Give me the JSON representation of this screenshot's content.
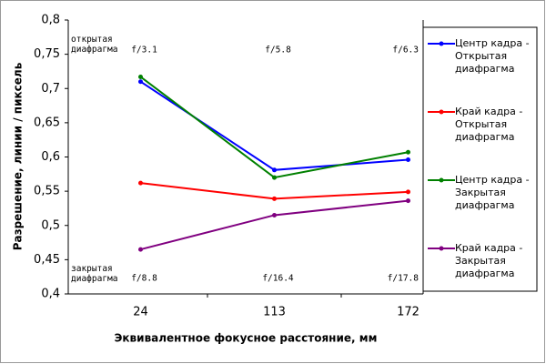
{
  "chart_data": {
    "type": "line",
    "y_label": "Разрешение, линии / пиксель",
    "x_label": "Эквивалентное фокусное расстояние, мм",
    "categories": [
      "24",
      "113",
      "172"
    ],
    "ylim": [
      0.4,
      0.8
    ],
    "yticks": [
      {
        "value": 0.4,
        "label": "0,4"
      },
      {
        "value": 0.45,
        "label": "0,45"
      },
      {
        "value": 0.5,
        "label": "0,5"
      },
      {
        "value": 0.55,
        "label": "0,55"
      },
      {
        "value": 0.6,
        "label": "0,6"
      },
      {
        "value": 0.65,
        "label": "0,65"
      },
      {
        "value": 0.7,
        "label": "0,7"
      },
      {
        "value": 0.75,
        "label": "0,75"
      },
      {
        "value": 0.8,
        "label": "0,8"
      }
    ],
    "series": [
      {
        "name": "Центр кадра - Открытая диафрагма",
        "color": "#0000ff",
        "values": [
          0.71,
          0.581,
          0.596
        ]
      },
      {
        "name": "Край кадра - Открытая диафрагма",
        "color": "#ff0000",
        "values": [
          0.562,
          0.539,
          0.549
        ]
      },
      {
        "name": "Центр кадра - Закрытая диафрагма",
        "color": "#008000",
        "values": [
          0.717,
          0.57,
          0.607
        ]
      },
      {
        "name": "Край кадра - Закрытая диафрагма",
        "color": "#800080",
        "values": [
          0.465,
          0.515,
          0.536
        ]
      }
    ],
    "annotations": {
      "open_label": "открытая диафрагма",
      "open_f": [
        "f/3.1",
        "f/5.8",
        "f/6.3"
      ],
      "closed_label": "закрытая диафрагма",
      "closed_f": [
        "f/8.8",
        "f/16.4",
        "f/17.8"
      ]
    }
  }
}
